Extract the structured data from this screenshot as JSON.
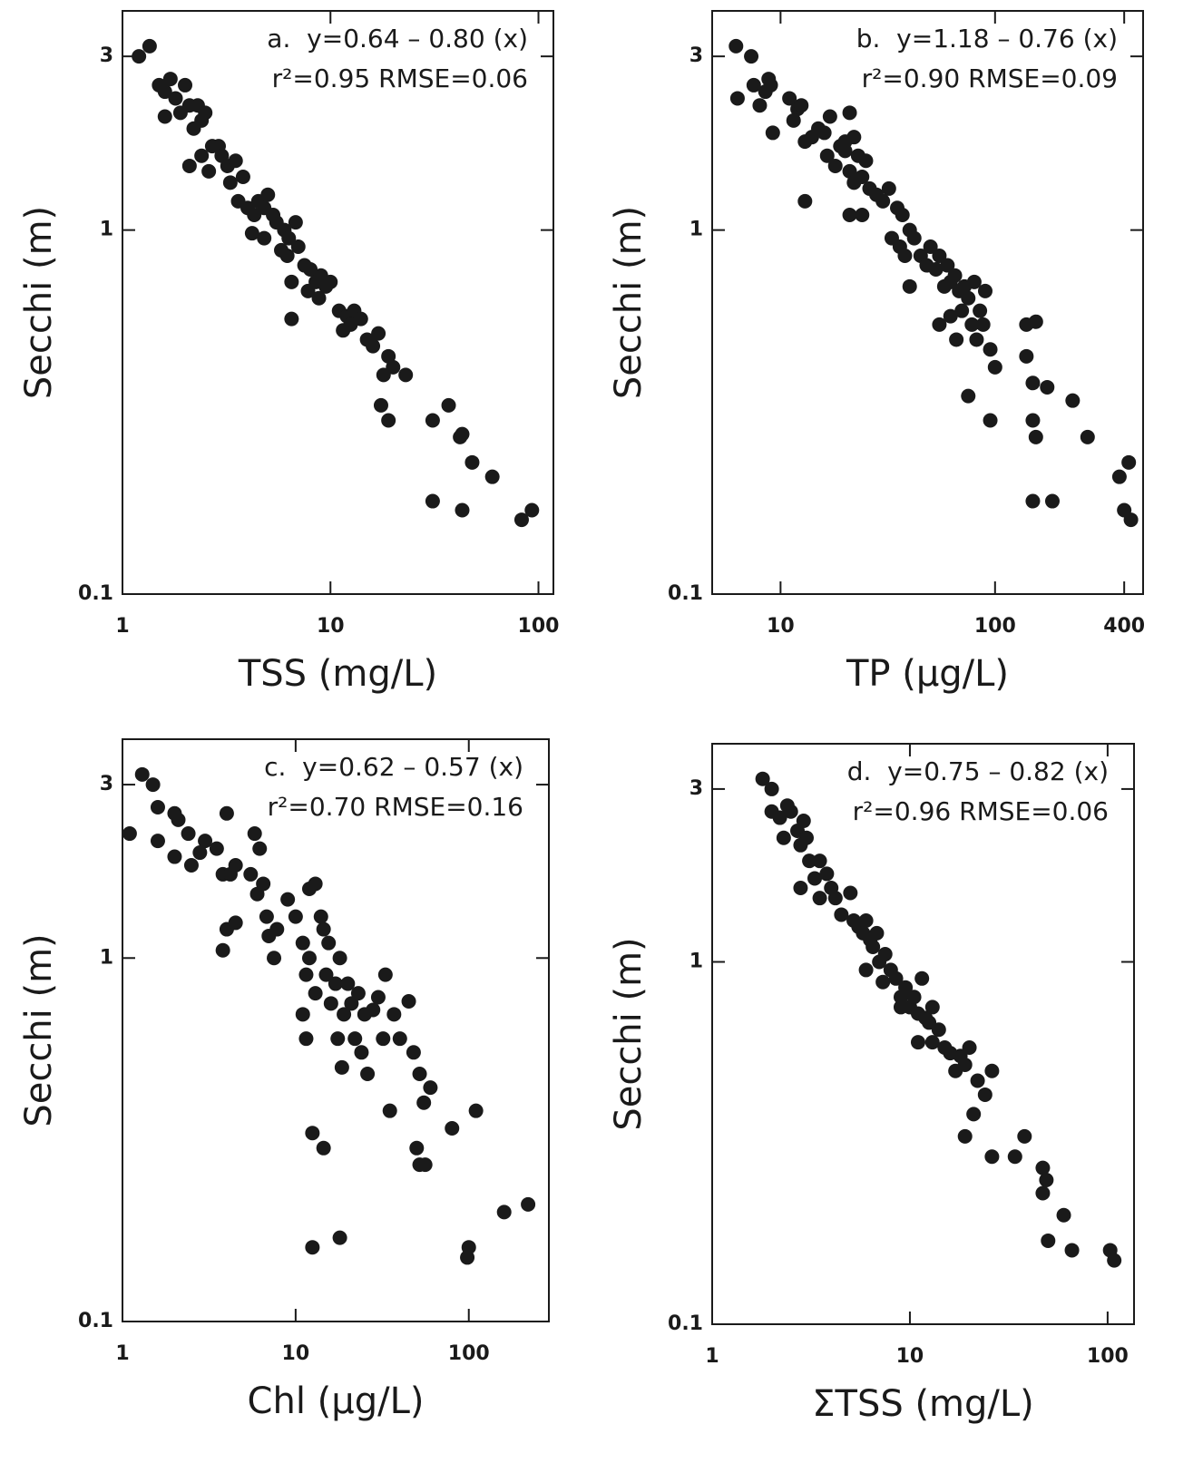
{
  "chart_data": [
    {
      "type": "scatter",
      "x_label": "TSS (mg/L)",
      "y_label": "Secchi (m)",
      "annotation": [
        "a.  y=0.64 – 0.80 (x)",
        "r²=0.95 RMSE=0.06"
      ],
      "log_x": true,
      "log_y": true,
      "color": "#1a1a1a",
      "xlim": [
        1,
        118
      ],
      "ylim": [
        0.1,
        4
      ],
      "xticks": [
        1,
        10,
        100
      ],
      "yticks": [
        0.1,
        1,
        3
      ],
      "x": [
        1.2,
        1.35,
        1.5,
        1.6,
        1.7,
        1.8,
        1.6,
        2.0,
        1.9,
        2.1,
        2.3,
        2.4,
        2.2,
        2.5,
        2.7,
        2.1,
        2.4,
        2.6,
        2.9,
        3.0,
        3.2,
        3.5,
        3.3,
        3.8,
        3.6,
        4.0,
        4.3,
        4.5,
        4.8,
        5.0,
        5.3,
        4.2,
        4.8,
        5.5,
        6.0,
        6.3,
        6.8,
        5.8,
        6.2,
        7.0,
        7.5,
        8.0,
        8.5,
        6.5,
        7.8,
        9.0,
        9.5,
        10,
        8.8,
        11,
        12,
        13,
        12.5,
        14,
        11.5,
        15,
        16,
        17,
        6.5,
        19,
        20,
        18,
        23,
        17.5,
        19,
        31,
        37,
        42,
        43,
        48,
        60,
        31,
        43,
        83,
        93
      ],
      "y": [
        3.0,
        3.2,
        2.5,
        2.4,
        2.6,
        2.3,
        2.05,
        2.5,
        2.1,
        2.2,
        2.2,
        2.0,
        1.9,
        2.1,
        1.7,
        1.5,
        1.6,
        1.45,
        1.7,
        1.6,
        1.5,
        1.55,
        1.35,
        1.4,
        1.2,
        1.15,
        1.1,
        1.2,
        1.15,
        1.25,
        1.1,
        0.98,
        0.95,
        1.05,
        1.0,
        0.95,
        1.05,
        0.88,
        0.85,
        0.9,
        0.8,
        0.78,
        0.72,
        0.72,
        0.68,
        0.75,
        0.7,
        0.72,
        0.65,
        0.6,
        0.58,
        0.6,
        0.55,
        0.57,
        0.53,
        0.5,
        0.48,
        0.52,
        0.57,
        0.45,
        0.42,
        0.4,
        0.4,
        0.33,
        0.3,
        0.3,
        0.33,
        0.27,
        0.275,
        0.23,
        0.21,
        0.18,
        0.17,
        0.16,
        0.17
      ]
    },
    {
      "type": "scatter",
      "x_label": "TP (µg/L)",
      "y_label": "Secchi (m)",
      "annotation": [
        "b.  y=1.18 – 0.76 (x)",
        "r²=0.90 RMSE=0.09"
      ],
      "log_x": true,
      "log_y": true,
      "color": "#1a1a1a",
      "xlim": [
        4.8,
        490
      ],
      "ylim": [
        0.1,
        4
      ],
      "xticks": [
        10,
        100,
        400
      ],
      "yticks": [
        0.1,
        1,
        3
      ],
      "x": [
        6.2,
        6.3,
        7.3,
        7.5,
        8.5,
        8.8,
        9.0,
        8.0,
        9.2,
        11,
        12,
        12.5,
        11.5,
        13,
        14,
        15,
        16,
        17,
        16.5,
        18,
        19,
        20,
        21,
        20,
        22,
        23,
        21,
        22,
        24,
        25,
        26,
        28,
        24,
        13,
        21,
        30,
        32,
        35,
        37,
        40,
        33,
        36,
        38,
        42,
        45,
        48,
        50,
        53,
        55,
        60,
        62,
        58,
        65,
        68,
        72,
        75,
        80,
        90,
        85,
        70,
        62,
        78,
        82,
        66,
        95,
        100,
        88,
        55,
        40,
        75,
        95,
        140,
        155,
        140,
        150,
        175,
        150,
        155,
        230,
        270,
        380,
        420,
        400,
        430,
        150,
        185
      ],
      "y": [
        3.2,
        2.3,
        3.0,
        2.5,
        2.4,
        2.6,
        2.5,
        2.2,
        1.85,
        2.3,
        2.15,
        2.2,
        2.0,
        1.75,
        1.8,
        1.9,
        1.85,
        2.05,
        1.6,
        1.5,
        1.7,
        1.75,
        2.1,
        1.65,
        1.8,
        1.6,
        1.45,
        1.35,
        1.4,
        1.55,
        1.3,
        1.25,
        1.1,
        1.2,
        1.1,
        1.2,
        1.3,
        1.15,
        1.1,
        1.0,
        0.95,
        0.9,
        0.85,
        0.95,
        0.85,
        0.8,
        0.9,
        0.78,
        0.85,
        0.8,
        0.72,
        0.7,
        0.75,
        0.68,
        0.7,
        0.65,
        0.72,
        0.68,
        0.6,
        0.6,
        0.58,
        0.55,
        0.5,
        0.5,
        0.47,
        0.42,
        0.55,
        0.55,
        0.7,
        0.35,
        0.3,
        0.55,
        0.56,
        0.45,
        0.38,
        0.37,
        0.3,
        0.27,
        0.34,
        0.27,
        0.21,
        0.23,
        0.17,
        0.16,
        0.18,
        0.18
      ]
    },
    {
      "type": "scatter",
      "x_label": "Chl (µg/L)",
      "y_label": "Secchi (m)",
      "annotation": [
        "c.  y=0.62 – 0.57 (x)",
        "r²=0.70 RMSE=0.16"
      ],
      "log_x": true,
      "log_y": true,
      "color": "#1a1a1a",
      "xlim": [
        1,
        290
      ],
      "ylim": [
        0.1,
        4
      ],
      "xticks": [
        1,
        10,
        100
      ],
      "yticks": [
        0.1,
        1,
        3
      ],
      "x": [
        1.1,
        1.3,
        1.5,
        1.6,
        1.6,
        2.0,
        2.0,
        2.1,
        2.4,
        2.5,
        2.8,
        3.0,
        3.5,
        3.8,
        4.0,
        4.2,
        4.5,
        4.0,
        3.8,
        4.5,
        5.5,
        5.8,
        6.0,
        6.2,
        6.5,
        6.8,
        7.0,
        7.5,
        7.8,
        9.0,
        10,
        11,
        12,
        11.5,
        11,
        11.5,
        12,
        13,
        13,
        14,
        14.5,
        15,
        15.5,
        16,
        17,
        17.5,
        18,
        18.5,
        19,
        20,
        21,
        22,
        23,
        24,
        25,
        26,
        28,
        30,
        32,
        33,
        35,
        37,
        40,
        45,
        48,
        52,
        55,
        60,
        80,
        100,
        98,
        110,
        160,
        220,
        12.5,
        14.5,
        12.5,
        18,
        50,
        52,
        56
      ],
      "y": [
        2.2,
        3.2,
        3.0,
        2.6,
        2.1,
        2.5,
        1.9,
        2.4,
        2.2,
        1.8,
        1.95,
        2.1,
        2.0,
        1.7,
        2.5,
        1.7,
        1.8,
        1.2,
        1.05,
        1.25,
        1.7,
        2.2,
        1.5,
        2.0,
        1.6,
        1.3,
        1.15,
        1.0,
        1.2,
        1.45,
        1.3,
        1.1,
        1.55,
        0.9,
        0.7,
        0.6,
        1.0,
        1.6,
        0.8,
        1.3,
        1.2,
        0.9,
        1.1,
        0.75,
        0.85,
        0.6,
        1.0,
        0.5,
        0.7,
        0.85,
        0.75,
        0.6,
        0.8,
        0.55,
        0.7,
        0.48,
        0.72,
        0.78,
        0.6,
        0.9,
        0.38,
        0.7,
        0.6,
        0.76,
        0.55,
        0.48,
        0.4,
        0.44,
        0.34,
        0.16,
        0.15,
        0.38,
        0.2,
        0.21,
        0.33,
        0.3,
        0.16,
        0.17,
        0.3,
        0.27,
        0.27
      ]
    },
    {
      "type": "scatter",
      "x_label": "ΣTSS (mg/L)",
      "y_label": "Secchi (m)",
      "annotation": [
        "d.  y=0.75 – 0.82 (x)",
        "r²=0.96 RMSE=0.06"
      ],
      "log_x": true,
      "log_y": true,
      "color": "#1a1a1a",
      "xlim": [
        1,
        136
      ],
      "ylim": [
        0.1,
        4
      ],
      "xticks": [
        1,
        10,
        100
      ],
      "yticks": [
        0.1,
        1,
        3
      ],
      "x": [
        1.8,
        2.0,
        2.0,
        2.2,
        2.4,
        2.5,
        2.3,
        2.7,
        2.8,
        2.9,
        3.0,
        3.1,
        2.8,
        3.3,
        3.5,
        3.8,
        4.0,
        3.5,
        4.2,
        4.5,
        5.0,
        5.2,
        5.5,
        5.8,
        6.0,
        6.3,
        6.5,
        6.8,
        7.0,
        7.5,
        8.0,
        6.0,
        7.3,
        8.5,
        9.0,
        9.5,
        10,
        10.5,
        11,
        11.5,
        12,
        12.5,
        13,
        9.0,
        14,
        11,
        13,
        15,
        16,
        18,
        20,
        19,
        17,
        22,
        24,
        26,
        21,
        19,
        26,
        34,
        38,
        47,
        49,
        47,
        60,
        50,
        66,
        103,
        108
      ],
      "y": [
        3.2,
        3.0,
        2.6,
        2.5,
        2.7,
        2.6,
        2.2,
        2.3,
        2.1,
        2.45,
        2.2,
        1.9,
        1.6,
        1.7,
        1.9,
        1.75,
        1.6,
        1.5,
        1.5,
        1.35,
        1.55,
        1.3,
        1.25,
        1.2,
        1.3,
        1.15,
        1.1,
        1.2,
        1.0,
        1.05,
        0.95,
        0.95,
        0.88,
        0.9,
        0.8,
        0.85,
        0.75,
        0.8,
        0.72,
        0.9,
        0.7,
        0.68,
        0.75,
        0.75,
        0.65,
        0.6,
        0.6,
        0.58,
        0.56,
        0.55,
        0.58,
        0.52,
        0.5,
        0.47,
        0.43,
        0.5,
        0.38,
        0.33,
        0.29,
        0.29,
        0.33,
        0.27,
        0.25,
        0.23,
        0.2,
        0.17,
        0.16,
        0.16,
        0.15
      ]
    }
  ]
}
